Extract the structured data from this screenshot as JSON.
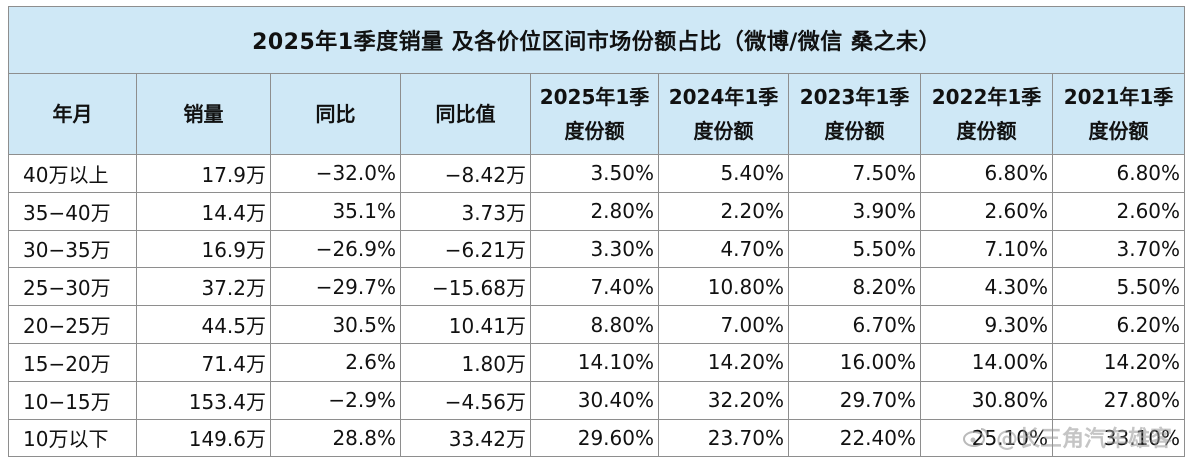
{
  "title": "2025年1季度销量 及各价位区间市场份额占比（微博/微信 桑之未）",
  "headers": [
    "年月",
    "销量",
    "同比",
    "同比值",
    "2025年1季度份额",
    "2024年1季度份额",
    "2023年1季度份额",
    "2022年1季度份额",
    "2021年1季度份额"
  ],
  "rows": [
    [
      "40万以上",
      "17.9万",
      "−32.0%",
      "−8.42万",
      "3.50%",
      "5.40%",
      "7.50%",
      "6.80%",
      "6.80%"
    ],
    [
      "35−40万",
      "14.4万",
      "35.1%",
      "3.73万",
      "2.80%",
      "2.20%",
      "3.90%",
      "2.60%",
      "2.60%"
    ],
    [
      "30−35万",
      "16.9万",
      "−26.9%",
      "−6.21万",
      "3.30%",
      "4.70%",
      "5.50%",
      "7.10%",
      "3.70%"
    ],
    [
      "25−30万",
      "37.2万",
      "−29.7%",
      "−15.68万",
      "7.40%",
      "10.80%",
      "8.20%",
      "4.30%",
      "5.50%"
    ],
    [
      "20−25万",
      "44.5万",
      "30.5%",
      "10.41万",
      "8.80%",
      "7.00%",
      "6.70%",
      "9.30%",
      "6.20%"
    ],
    [
      "15−20万",
      "71.4万",
      "2.6%",
      "1.80万",
      "14.10%",
      "14.20%",
      "16.00%",
      "14.00%",
      "14.20%"
    ],
    [
      "10−15万",
      "153.4万",
      "−2.9%",
      "−4.56万",
      "30.40%",
      "32.20%",
      "29.70%",
      "30.80%",
      "27.80%"
    ],
    [
      "10万以下",
      "149.6万",
      "28.8%",
      "33.42万",
      "29.60%",
      "23.70%",
      "22.40%",
      "25.10%",
      "33.10%"
    ]
  ],
  "watermark": "@长三角汽车雄客",
  "colors": {
    "header_bg": "#cfe8f6",
    "border": "#8e8e8e"
  },
  "icons": {
    "watermark": "weibo-icon"
  }
}
